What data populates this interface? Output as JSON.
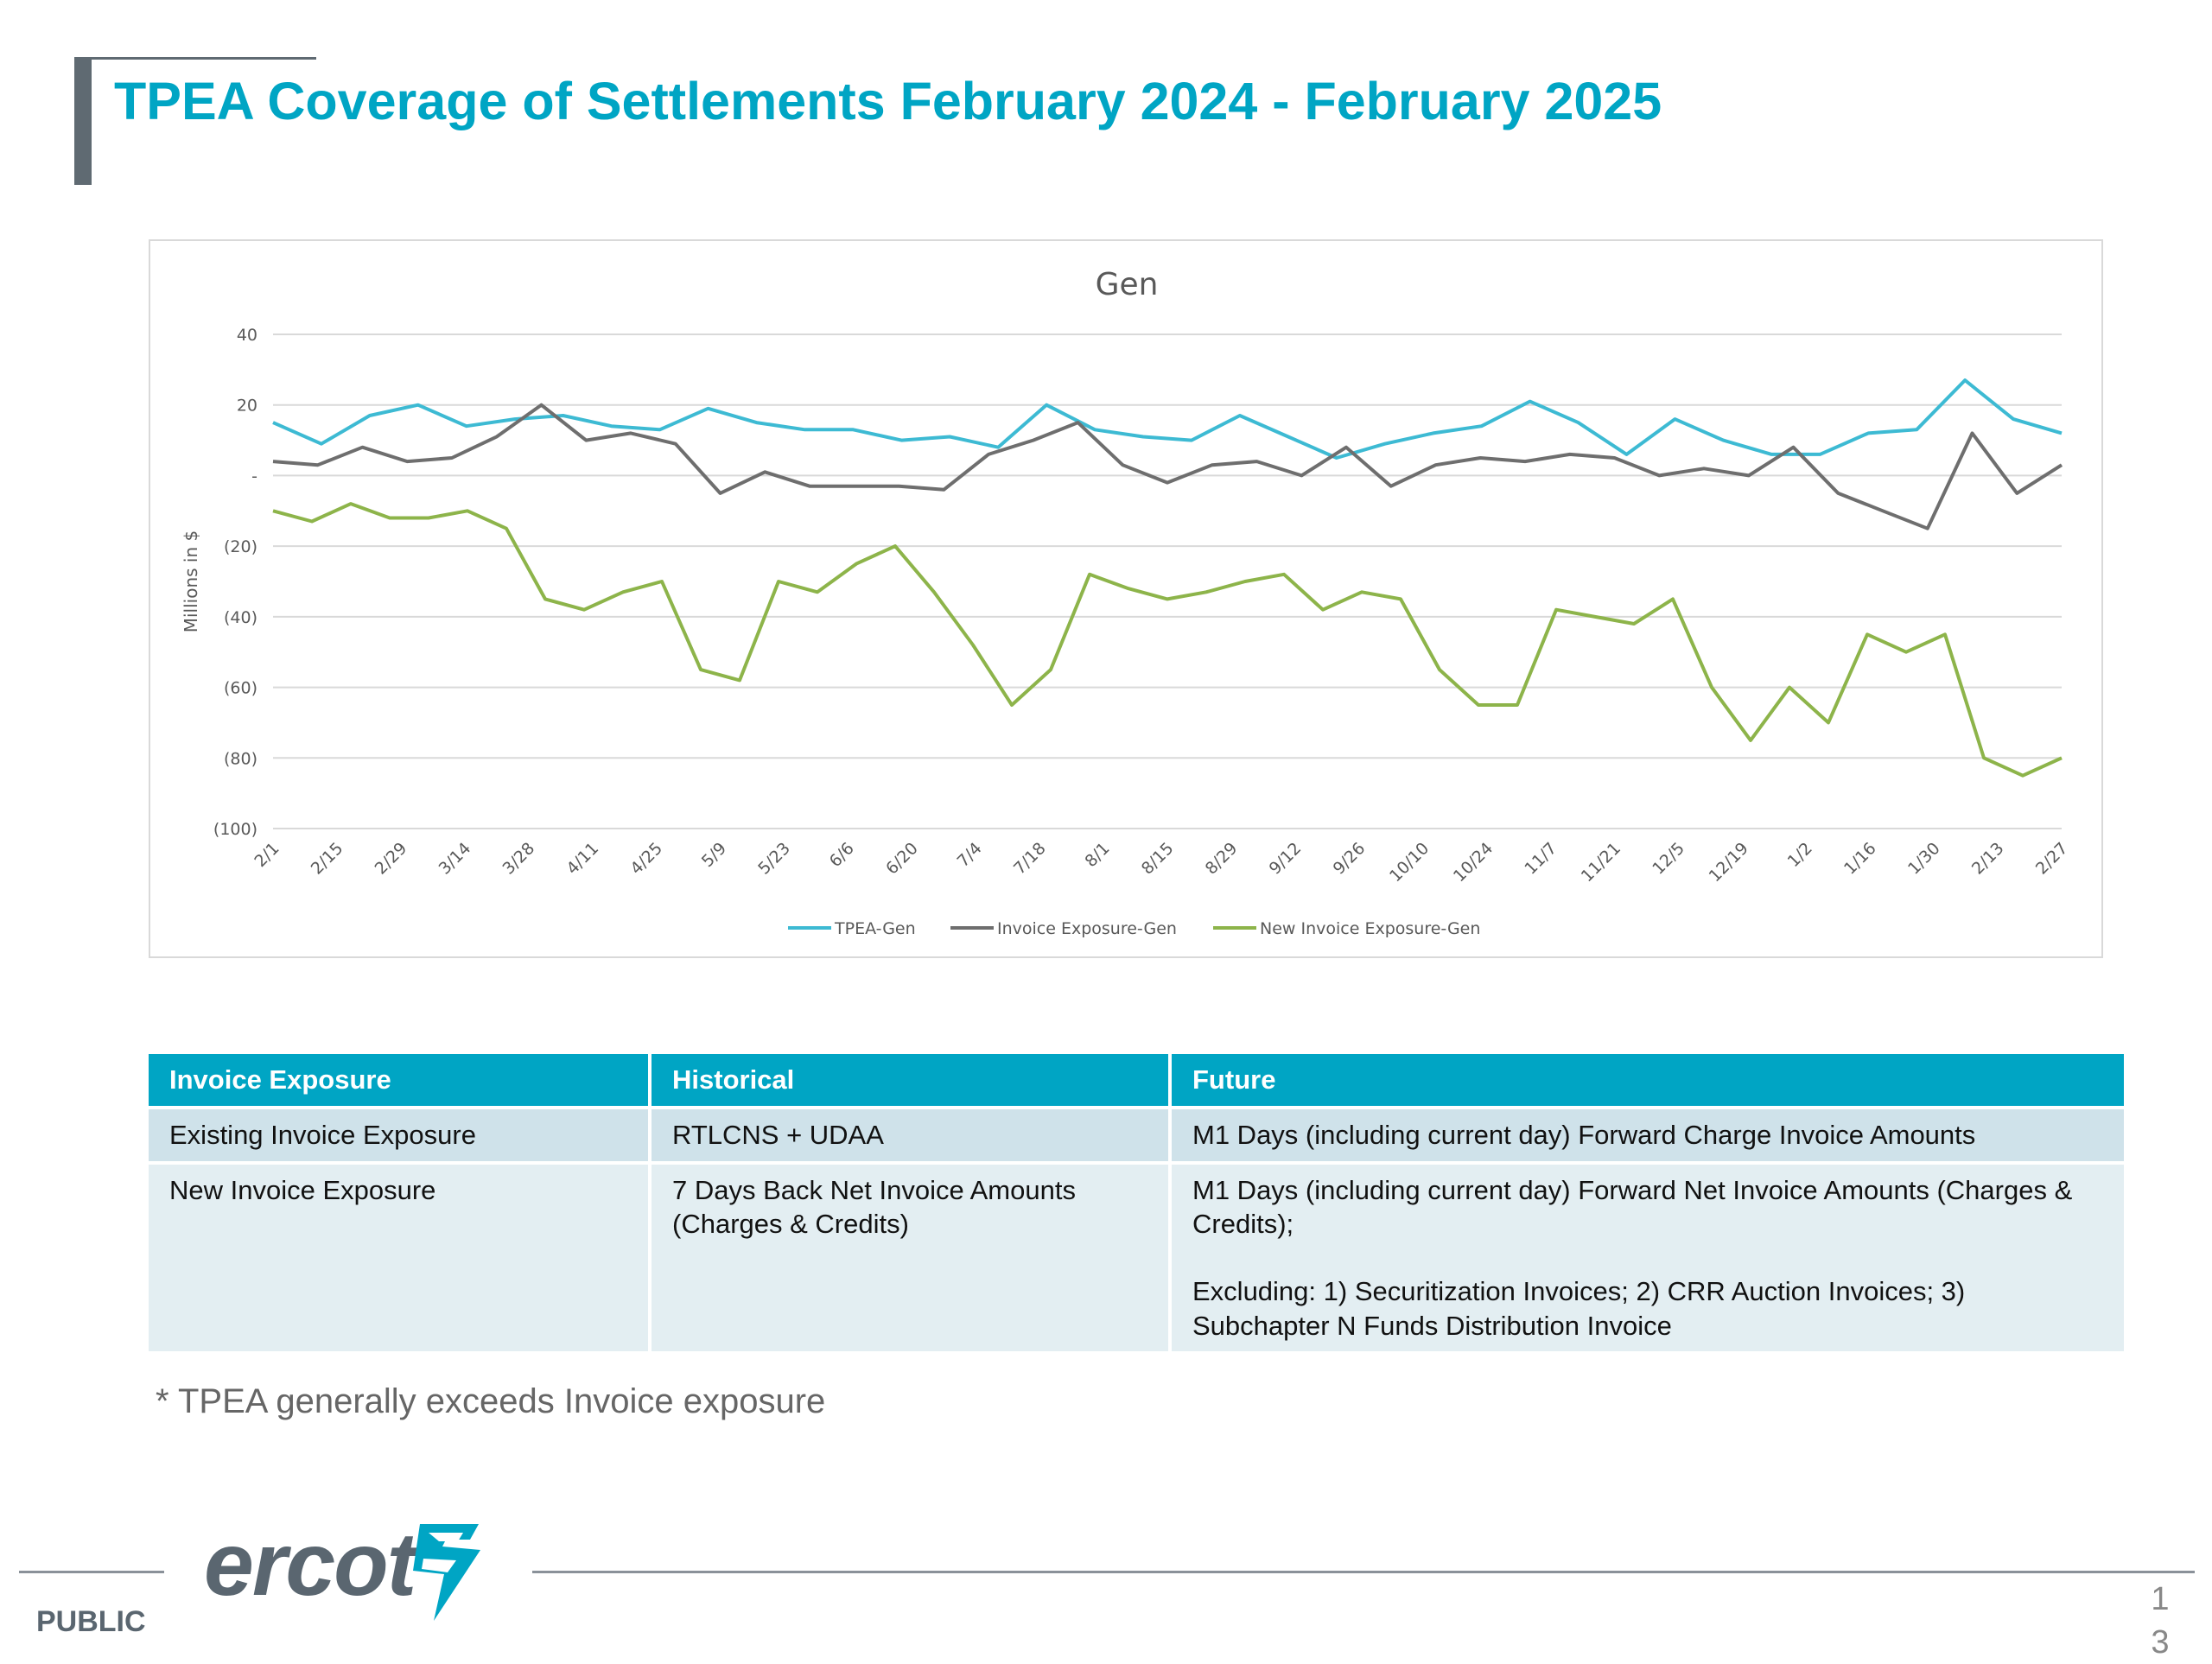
{
  "slide": {
    "title": "TPEA Coverage of Settlements February 2024 - February 2025",
    "footnote": "* TPEA generally exceeds Invoice exposure",
    "footer_label": "PUBLIC",
    "logo_text": "ercot",
    "page_number": "13"
  },
  "colors": {
    "accent": "#00a5c4",
    "tpea_gen": "#3dbad3",
    "invoice_exposure_gen": "#6e6e6e",
    "new_invoice_exposure_gen": "#8db44a"
  },
  "chart_data": {
    "type": "line",
    "title": "Gen",
    "ylabel": "Millions in $",
    "ylim": [
      -100,
      40
    ],
    "yticks": [
      40,
      20,
      0,
      -20,
      -40,
      -60,
      -80,
      -100
    ],
    "ytick_labels": [
      "40",
      "20",
      "-",
      "(20)",
      "(40)",
      "(60)",
      "(80)",
      "(100)"
    ],
    "x_tick_labels": [
      "2/1",
      "2/15",
      "2/29",
      "3/14",
      "3/28",
      "4/11",
      "4/25",
      "5/9",
      "5/23",
      "6/6",
      "6/20",
      "7/4",
      "7/18",
      "8/1",
      "8/15",
      "8/29",
      "9/12",
      "9/26",
      "10/10",
      "10/24",
      "11/7",
      "11/21",
      "12/5",
      "12/19",
      "1/2",
      "1/16",
      "1/30",
      "2/13",
      "2/27"
    ],
    "grid": true,
    "legend_position": "bottom",
    "series": [
      {
        "name": "TPEA-Gen",
        "values": [
          15,
          9,
          17,
          20,
          14,
          16,
          17,
          14,
          13,
          19,
          15,
          13,
          13,
          10,
          11,
          8,
          20,
          13,
          11,
          10,
          17,
          11,
          5,
          9,
          12,
          14,
          21,
          15,
          6,
          16,
          10,
          6,
          6,
          12,
          13,
          27,
          16,
          12
        ]
      },
      {
        "name": "Invoice Exposure-Gen",
        "values": [
          4,
          3,
          8,
          4,
          5,
          11,
          20,
          10,
          12,
          9,
          -5,
          1,
          -3,
          -3,
          -3,
          -4,
          6,
          10,
          15,
          3,
          -2,
          3,
          4,
          0,
          8,
          -3,
          3,
          5,
          4,
          6,
          5,
          0,
          2,
          0,
          8,
          -5,
          -10,
          -15,
          12,
          -5,
          3
        ]
      },
      {
        "name": "New Invoice Exposure-Gen",
        "values": [
          -10,
          -13,
          -8,
          -12,
          -12,
          -10,
          -15,
          -35,
          -38,
          -33,
          -30,
          -55,
          -58,
          -30,
          -33,
          -25,
          -20,
          -33,
          -48,
          -65,
          -55,
          -28,
          -32,
          -35,
          -33,
          -30,
          -28,
          -38,
          -33,
          -35,
          -55,
          -65,
          -65,
          -38,
          -40,
          -42,
          -35,
          -60,
          -75,
          -60,
          -70,
          -45,
          -50,
          -45,
          -80,
          -85,
          -80
        ]
      }
    ]
  },
  "table": {
    "headers": [
      "Invoice Exposure",
      "Historical",
      "Future"
    ],
    "rows": [
      {
        "c1": "Existing Invoice Exposure",
        "c2": "RTLCNS + UDAA",
        "c3": "M1 Days (including current day)  Forward Charge Invoice Amounts"
      },
      {
        "c1": "New Invoice Exposure",
        "c2_line1": "7 Days Back Net Invoice Amounts",
        "c2_line2": "(Charges & Credits)",
        "c3_line1": "M1 Days (including current day) Forward Net Invoice Amounts (Charges &",
        "c3_line2": "Credits);",
        "c3_line3": "Excluding: 1) Securitization Invoices; 2) CRR Auction Invoices; 3)",
        "c3_line4": "Subchapter N Funds Distribution Invoice"
      }
    ]
  }
}
